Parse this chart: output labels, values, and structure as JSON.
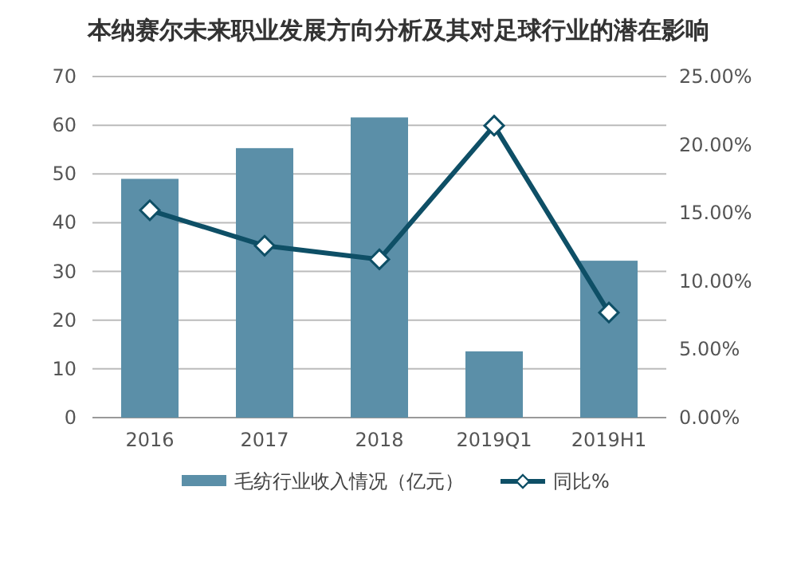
{
  "chart_data": {
    "type": "bar",
    "title": "本纳赛尔未来职业发展方向分析及其对足球行业的潜在影响",
    "categories": [
      "2016",
      "2017",
      "2018",
      "2019Q1",
      "2019H1"
    ],
    "series": [
      {
        "name": "毛纺行业收入情况（亿元）",
        "color": "#5b8fa8",
        "values": [
          49,
          55.3,
          61.6,
          13.6,
          32.2
        ]
      },
      {
        "name": "同比%",
        "type": "line",
        "axis": "y2",
        "color": "#0e4f66",
        "marker": "diamond",
        "values": [
          15.2,
          12.6,
          11.6,
          21.4,
          7.7
        ]
      }
    ],
    "ylim": [
      0,
      70
    ],
    "yticks": [
      0,
      10,
      20,
      30,
      40,
      50,
      60,
      70
    ],
    "y2lim": [
      0,
      25
    ],
    "y2ticks": [
      {
        "value": 0,
        "label": "0.00%"
      },
      {
        "value": 5,
        "label": "5.00%"
      },
      {
        "value": 10,
        "label": "10.00%"
      },
      {
        "value": 15,
        "label": "15.00%"
      },
      {
        "value": 20,
        "label": "20.00%"
      },
      {
        "value": 25,
        "label": "25.00%"
      }
    ],
    "grid": "y",
    "legend": "bottom"
  }
}
